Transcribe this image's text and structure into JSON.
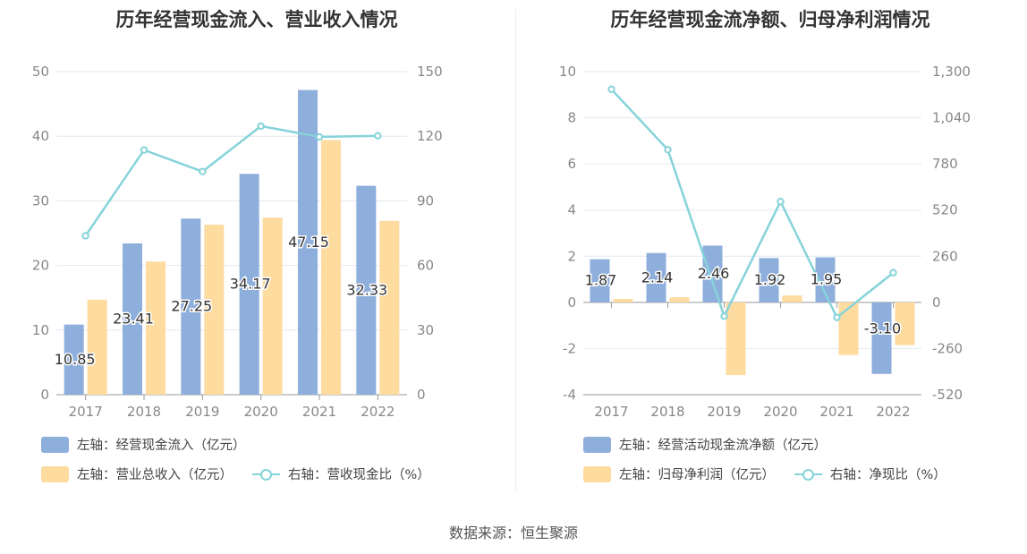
{
  "source": "数据来源：恒生聚源",
  "charts": [
    {
      "title": "历年经营现金流入、营业收入情况",
      "legend": {
        "bar1": "左轴：经营现金流入（亿元）",
        "bar2": "左轴：营业总收入（亿元）",
        "line": "右轴：营收现金比（%）"
      }
    },
    {
      "title": "历年经营现金流净额、归母净利润情况",
      "legend": {
        "bar1": "左轴：经营活动现金流净额（亿元）",
        "bar2": "左轴：归母净利润（亿元）",
        "line": "右轴：净现比（%）"
      }
    }
  ],
  "colors": {
    "bar1": "#8eaedc",
    "bar2": "#fedb9f",
    "line": "#86d3da"
  },
  "chart_data": [
    {
      "type": "bar",
      "categories": [
        "2017",
        "2018",
        "2019",
        "2020",
        "2021",
        "2022"
      ],
      "series": [
        {
          "name": "左轴：经营现金流入（亿元）",
          "axis": "left",
          "values": [
            10.85,
            23.41,
            27.25,
            34.17,
            47.15,
            32.33
          ],
          "labels": [
            "10.85",
            "23.41",
            "27.25",
            "34.17",
            "47.15",
            "32.33"
          ]
        },
        {
          "name": "左轴：营业总收入（亿元）",
          "axis": "left",
          "values": [
            14.7,
            20.6,
            26.3,
            27.4,
            39.4,
            26.9
          ]
        },
        {
          "name": "右轴：营收现金比（%）",
          "axis": "right",
          "type": "line",
          "values": [
            73.8,
            113.6,
            103.6,
            124.7,
            119.7,
            120.2
          ]
        }
      ],
      "left_axis": {
        "ticks": [
          "0",
          "10",
          "20",
          "30",
          "40",
          "50"
        ],
        "ylim": [
          0,
          50
        ]
      },
      "right_axis": {
        "ticks": [
          "0",
          "30",
          "60",
          "90",
          "120",
          "150"
        ],
        "ylim": [
          0,
          150
        ]
      },
      "grid": true,
      "legend_position": "bottom-left"
    },
    {
      "type": "bar",
      "categories": [
        "2017",
        "2018",
        "2019",
        "2020",
        "2021",
        "2022"
      ],
      "series": [
        {
          "name": "左轴：经营活动现金流净额（亿元）",
          "axis": "left",
          "values": [
            1.87,
            2.14,
            2.46,
            1.92,
            1.95,
            -3.1
          ],
          "labels": [
            "1.87",
            "2.14",
            "2.46",
            "1.92",
            "1.95",
            "-3.10"
          ]
        },
        {
          "name": "左轴：归母净利润（亿元）",
          "axis": "left",
          "values": [
            0.15,
            0.22,
            -3.15,
            0.3,
            -2.28,
            -1.85
          ]
        },
        {
          "name": "右轴：净现比（%）",
          "axis": "right",
          "type": "line",
          "values": [
            1200,
            860,
            -78,
            568,
            -85,
            167
          ]
        }
      ],
      "left_axis": {
        "ticks": [
          "-4",
          "-2",
          "0",
          "2",
          "4",
          "6",
          "8",
          "10"
        ],
        "ylim": [
          -4,
          10
        ]
      },
      "right_axis": {
        "ticks": [
          "-520",
          "-260",
          "0",
          "260",
          "520",
          "780",
          "1,040",
          "1,300"
        ],
        "ylim": [
          -520,
          1300
        ]
      },
      "grid": true,
      "legend_position": "bottom-left"
    }
  ]
}
